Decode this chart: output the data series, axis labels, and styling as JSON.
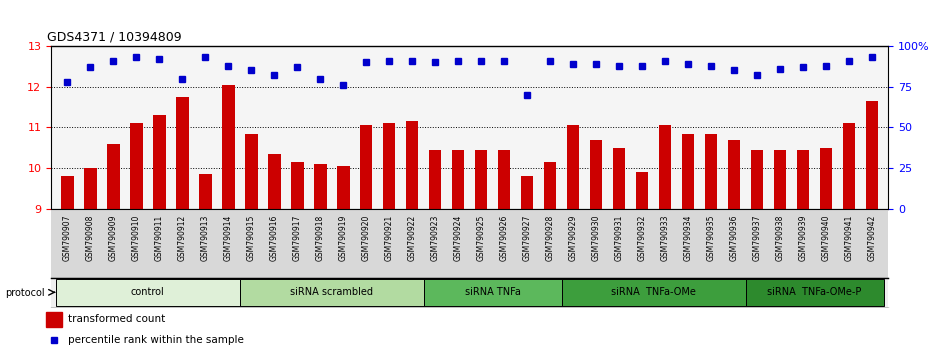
{
  "title": "GDS4371 / 10394809",
  "samples": [
    "GSM790907",
    "GSM790908",
    "GSM790909",
    "GSM790910",
    "GSM790911",
    "GSM790912",
    "GSM790913",
    "GSM790914",
    "GSM790915",
    "GSM790916",
    "GSM790917",
    "GSM790918",
    "GSM790919",
    "GSM790920",
    "GSM790921",
    "GSM790922",
    "GSM790923",
    "GSM790924",
    "GSM790925",
    "GSM790926",
    "GSM790927",
    "GSM790928",
    "GSM790929",
    "GSM790930",
    "GSM790931",
    "GSM790932",
    "GSM790933",
    "GSM790934",
    "GSM790935",
    "GSM790936",
    "GSM790937",
    "GSM790938",
    "GSM790939",
    "GSM790940",
    "GSM790941",
    "GSM790942"
  ],
  "bar_values": [
    9.8,
    10.0,
    10.6,
    11.1,
    11.3,
    11.75,
    9.85,
    12.05,
    10.85,
    10.35,
    10.15,
    10.1,
    10.05,
    11.05,
    11.1,
    11.15,
    10.45,
    10.45,
    10.45,
    10.45,
    9.8,
    10.15,
    11.05,
    10.7,
    10.5,
    9.9,
    11.05,
    10.85,
    10.85,
    10.7,
    10.45,
    10.45,
    10.45,
    10.5,
    11.1,
    11.65
  ],
  "dot_values": [
    78,
    87,
    91,
    93,
    92,
    80,
    93,
    88,
    85,
    82,
    87,
    80,
    76,
    90,
    91,
    91,
    90,
    91,
    91,
    91,
    70,
    91,
    89,
    89,
    88,
    88,
    91,
    89,
    88,
    85,
    82,
    86,
    87,
    88,
    91,
    93
  ],
  "bar_color": "#cc0000",
  "dot_color": "#0000cc",
  "ylim_left": [
    9,
    13
  ],
  "ylim_right": [
    0,
    100
  ],
  "yticks_left": [
    9,
    10,
    11,
    12,
    13
  ],
  "yticks_right": [
    0,
    25,
    50,
    75,
    100
  ],
  "ytick_labels_right": [
    "0",
    "25",
    "50",
    "75",
    "100%"
  ],
  "groups": [
    {
      "label": "control",
      "start": 0,
      "end": 7,
      "color": "#dff0d8"
    },
    {
      "label": "siRNA scrambled",
      "start": 8,
      "end": 15,
      "color": "#b2dba1"
    },
    {
      "label": "siRNA TNFa",
      "start": 16,
      "end": 21,
      "color": "#5cb85c"
    },
    {
      "label": "siRNA  TNFa-OMe",
      "start": 22,
      "end": 29,
      "color": "#3d9e3d"
    },
    {
      "label": "siRNA  TNFa-OMe-P",
      "start": 30,
      "end": 35,
      "color": "#2d8a2d"
    }
  ],
  "legend_bar_label": "transformed count",
  "legend_dot_label": "percentile rank within the sample",
  "background_color": "#ffffff",
  "plot_bg_color": "#f5f5f5",
  "xtick_bg_color": "#d8d8d8"
}
